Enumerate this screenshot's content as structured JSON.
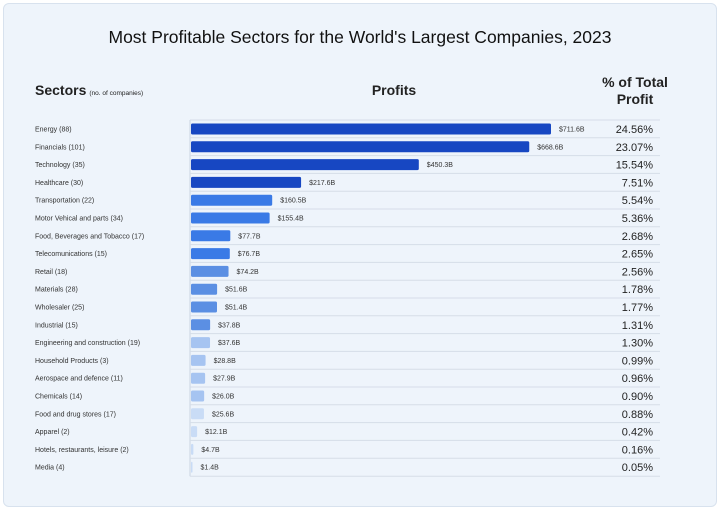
{
  "chart_data": {
    "type": "bar",
    "orientation": "horizontal",
    "title": "Most Profitable Sectors for the World's Largest Companies, 2023",
    "column_headers": {
      "sectors": "Sectors",
      "sectors_note": "(no. of companies)",
      "profits": "Profits",
      "percent": "% of Total Profit"
    },
    "categories": [
      "Energy (88)",
      "Financials (101)",
      "Technology (35)",
      "Healthcare (30)",
      "Transportation (22)",
      "Motor Vehical and parts (34)",
      "Food, Beverages and Tobacco (17)",
      "Telecomunications (15)",
      "Retail (18)",
      "Materials (28)",
      "Wholesaler (25)",
      "Industrial (15)",
      "Engineering and construction (19)",
      "Household Products (3)",
      "Aerospace and defence (11)",
      "Chemicals (14)",
      "Food and drug stores (17)",
      "Apparel  (2)",
      "Hotels, restaurants, leisure (2)",
      "Media (4)"
    ],
    "values": [
      711.6,
      668.6,
      450.3,
      217.6,
      160.5,
      155.4,
      77.7,
      76.7,
      74.2,
      51.6,
      51.4,
      37.8,
      37.6,
      28.8,
      27.9,
      26.0,
      25.6,
      12.1,
      4.7,
      1.4
    ],
    "value_labels": [
      "$711.6B",
      "$668.6B",
      "$450.3B",
      "$217.6B",
      "$160.5B",
      "$155.4B",
      "$77.7B",
      "$76.7B",
      "$74.2B",
      "$51.6B",
      "$51.4B",
      "$37.8B",
      "$37.6B",
      "$28.8B",
      "$27.9B",
      "$26.0B",
      "$25.6B",
      "$12.1B",
      "$4.7B",
      "$1.4B"
    ],
    "percent_labels": [
      "24.56%",
      "23.07%",
      "15.54%",
      "7.51%",
      "5.54%",
      "5.36%",
      "2.68%",
      "2.65%",
      "2.56%",
      "1.78%",
      "1.77%",
      "1.31%",
      "1.30%",
      "0.99%",
      "0.96%",
      "0.90%",
      "0.88%",
      "0.42%",
      "0.16%",
      "0.05%"
    ],
    "unit": "billion USD",
    "xlim": [
      0,
      711.6
    ],
    "colors": [
      "#1747c2",
      "#1747c2",
      "#1747c2",
      "#1747c2",
      "#3a7ae6",
      "#3a7ae6",
      "#3a7ae6",
      "#3a7ae6",
      "#5b8fe3",
      "#5b8fe3",
      "#5b8fe3",
      "#5b8fe3",
      "#a6c4f1",
      "#a6c4f1",
      "#a6c4f1",
      "#a6c4f1",
      "#c9dcf6",
      "#c9dcf6",
      "#c9dcf6",
      "#c9dcf6"
    ],
    "grid": "row separators"
  }
}
